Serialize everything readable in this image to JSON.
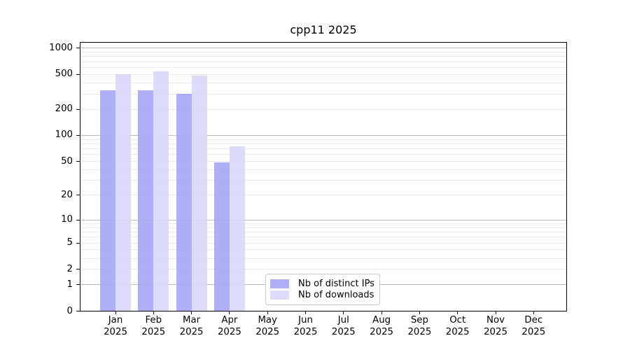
{
  "chart_data": {
    "type": "bar",
    "title": "cpp11 2025",
    "categories": [
      "Jan",
      "Feb",
      "Mar",
      "Apr",
      "May",
      "Jun",
      "Jul",
      "Aug",
      "Sep",
      "Oct",
      "Nov",
      "Dec"
    ],
    "x_year_line": "2025",
    "series": [
      {
        "name": "Nb of distinct IPs",
        "color": "#a6a6f8",
        "values": [
          325,
          325,
          295,
          48,
          0,
          0,
          0,
          0,
          0,
          0,
          0,
          0
        ]
      },
      {
        "name": "Nb of downloads",
        "color": "#d8d8f8",
        "values": [
          495,
          535,
          480,
          74,
          0,
          0,
          0,
          0,
          0,
          0,
          0,
          0
        ]
      }
    ],
    "yscale": "log1p",
    "y_ticks": [
      0,
      1,
      2,
      5,
      10,
      20,
      50,
      100,
      200,
      500,
      1000
    ],
    "y_major_gridlines": [
      1,
      10,
      100,
      1000
    ],
    "log1p_top": 3.0573,
    "grid": true,
    "legend_position": "lower center"
  },
  "colors": {
    "bar_distinct_ips": "#a6a6f8",
    "bar_downloads": "#d8d8f8",
    "grid_major": "#bdbdbd",
    "grid_minor": "#ececec",
    "axis": "#000000",
    "legend_border": "#cccccc",
    "text": "#000000",
    "background": "#ffffff"
  }
}
